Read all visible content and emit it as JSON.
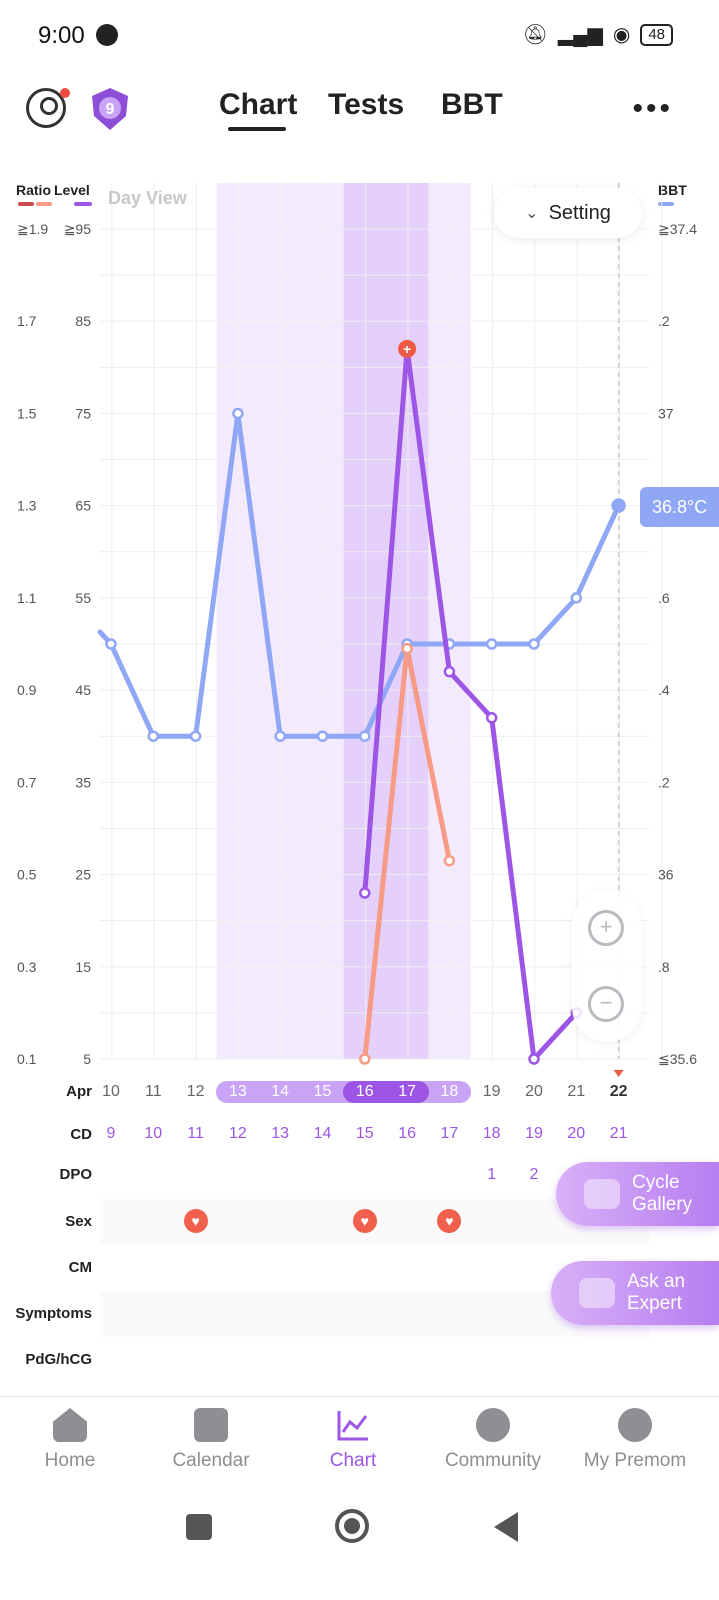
{
  "status_bar": {
    "time": "9:00",
    "battery": "48"
  },
  "header": {
    "tabs": [
      {
        "label": "Chart"
      },
      {
        "label": "Tests"
      },
      {
        "label": "BBT"
      }
    ],
    "active_tab": "Chart",
    "more_label": "•••",
    "badge_number": "9"
  },
  "chart_header": {
    "ratio_label": "Ratio",
    "level_label": "Level",
    "bbt_label": "BBT",
    "day_view": "Day View",
    "setting_label": "Setting",
    "current_bbt": "36.8°C"
  },
  "colors": {
    "bbt": "#8fa7f5",
    "lh_level": "#9d55e6",
    "ratio": "#f79b86",
    "fertile_light": "#f3ebfd",
    "fertile_dark": "#e4d0fb",
    "ovulation_marker": "#ef5a45"
  },
  "axes": {
    "ratio": [
      "≧1.9",
      "1.7",
      "1.5",
      "1.3",
      "1.1",
      "0.9",
      "0.7",
      "0.5",
      "0.3",
      "0.1"
    ],
    "level": [
      "≧95",
      "85",
      "75",
      "65",
      "55",
      "45",
      "35",
      "25",
      "15",
      "5"
    ],
    "bbt": [
      "≧37.4",
      ".2",
      "37",
      ".8",
      ".6",
      ".4",
      ".2",
      "36",
      ".8",
      "≦35.6"
    ]
  },
  "dates": {
    "month": "Apr",
    "days": [
      "10",
      "11",
      "12",
      "13",
      "14",
      "15",
      "16",
      "17",
      "18",
      "19",
      "20",
      "21",
      "22"
    ],
    "cd": [
      "9",
      "10",
      "11",
      "12",
      "13",
      "14",
      "15",
      "16",
      "17",
      "18",
      "19",
      "20",
      "21"
    ],
    "dpo": [
      "",
      "",
      "",
      "",
      "",
      "",
      "",
      "",
      "",
      "1",
      "2",
      "",
      ""
    ]
  },
  "rows": {
    "month_label": "Apr",
    "cd_label": "CD",
    "dpo_label": "DPO",
    "sex_label": "Sex",
    "cm_label": "CM",
    "symptoms_label": "Symptoms",
    "pdg_label": "PdG/hCG"
  },
  "chart_data": {
    "type": "line",
    "x": [
      "Apr 10",
      "Apr 11",
      "Apr 12",
      "Apr 13",
      "Apr 14",
      "Apr 15",
      "Apr 16",
      "Apr 17",
      "Apr 18",
      "Apr 19",
      "Apr 20",
      "Apr 21",
      "Apr 22"
    ],
    "series": [
      {
        "name": "BBT",
        "axis": "right",
        "unit": "°C",
        "values": [
          36.5,
          36.3,
          36.3,
          37.0,
          36.3,
          36.3,
          36.3,
          36.5,
          36.5,
          36.5,
          36.5,
          36.6,
          36.8
        ]
      },
      {
        "name": "Level",
        "axis": "level",
        "values": [
          null,
          null,
          null,
          null,
          null,
          null,
          23,
          82,
          47,
          42,
          5,
          10,
          null
        ]
      },
      {
        "name": "Ratio",
        "axis": "ratio",
        "values": [
          null,
          null,
          null,
          null,
          null,
          null,
          0.1,
          0.99,
          0.53,
          null,
          null,
          null,
          null
        ]
      }
    ],
    "fertile_window": [
      "Apr 13",
      "Apr 18"
    ],
    "high_fertility": [
      "Apr 16",
      "Apr 17"
    ],
    "ovulation_day": "Apr 17",
    "sex_days": [
      "Apr 12",
      "Apr 16",
      "Apr 18"
    ],
    "ylim_bbt": [
      35.6,
      37.4
    ],
    "ylim_level": [
      5,
      95
    ],
    "ylim_ratio": [
      0.1,
      1.9
    ],
    "grid": true
  },
  "floating_buttons": {
    "cycle_gallery": [
      "Cycle",
      "Gallery"
    ],
    "ask_expert": [
      "Ask an",
      "Expert"
    ]
  },
  "bottom_nav": [
    {
      "label": "Home"
    },
    {
      "label": "Calendar"
    },
    {
      "label": "Chart"
    },
    {
      "label": "Community"
    },
    {
      "label": "My Premom"
    }
  ]
}
